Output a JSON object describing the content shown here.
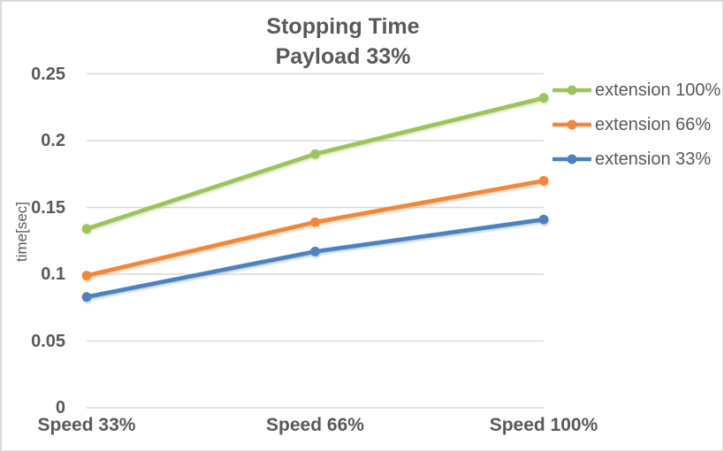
{
  "chart_data": {
    "type": "line",
    "title": "Stopping Time",
    "subtitle": "Payload 33%",
    "ylabel": "time[sec]",
    "categories": [
      "Speed 33%",
      "Speed 66%",
      "Speed 100%"
    ],
    "series": [
      {
        "name": "extension 100%",
        "color": "#9EC35E",
        "values": [
          0.134,
          0.19,
          0.232
        ]
      },
      {
        "name": "extension 66%",
        "color": "#F0883C",
        "values": [
          0.099,
          0.139,
          0.17
        ]
      },
      {
        "name": "extension 33%",
        "color": "#4E81BD",
        "values": [
          0.083,
          0.117,
          0.141
        ]
      }
    ],
    "ylim": [
      0,
      0.25
    ],
    "y_ticks": [
      0,
      0.05,
      0.1,
      0.15,
      0.2,
      0.25
    ],
    "y_tick_labels": [
      "0",
      "0.05",
      "0.1",
      "0.15",
      "0.2",
      "0.25"
    ],
    "grid": "horizontal",
    "legend_position": "right",
    "marker": "circle",
    "colors": {
      "text": "#595959",
      "gridline": "#D9D9D9",
      "border": "#D9D9D9",
      "background": "#FFFFFF"
    }
  }
}
